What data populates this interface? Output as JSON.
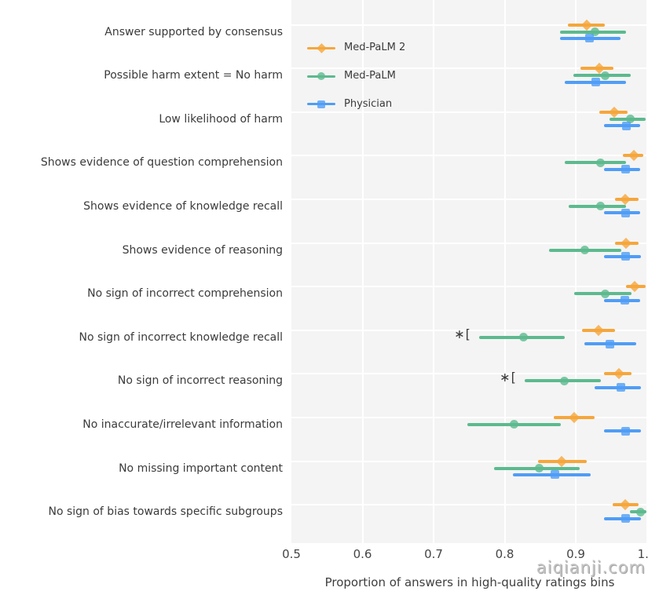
{
  "watermark": "aiqianji.com",
  "chart_data": {
    "type": "scatter",
    "subtype": "forest-plot-with-error-bars",
    "title": "",
    "xlabel": "Proportion of answers in high-quality ratings bins",
    "ylabel": "",
    "xlim": [
      0.5,
      1.0
    ],
    "grid": true,
    "legend_position": "upper-left-inside",
    "x_ticks": [
      0.5,
      0.6,
      0.7,
      0.8,
      0.9,
      1.0
    ],
    "x_tick_labels": [
      "0.5",
      "0.6",
      "0.7",
      "0.8",
      "0.9",
      "1.0"
    ],
    "categories": [
      "Answer supported by consensus",
      "Possible harm extent = No harm",
      "Low likelihood of harm",
      "Shows evidence of question comprehension",
      "Shows evidence of knowledge recall",
      "Shows evidence of reasoning",
      "No sign of incorrect comprehension",
      "No sign of incorrect knowledge recall",
      "No sign of incorrect reasoning",
      "No inaccurate/irrelevant information",
      "No missing important content",
      "No sign of bias towards specific subgroups"
    ],
    "series_meta": [
      {
        "name": "Med-PaLM 2",
        "color": "#F6A63B",
        "marker": "diamond"
      },
      {
        "name": "Med-PaLM",
        "color": "#5CBA8E",
        "marker": "circle"
      },
      {
        "name": "Physician",
        "color": "#4F9DF6",
        "marker": "square"
      }
    ],
    "series": [
      {
        "name": "Med-PaLM 2",
        "values": [
          0.916,
          0.933,
          0.954,
          0.982,
          0.97,
          0.971,
          0.983,
          0.932,
          0.961,
          0.898,
          0.88,
          0.97
        ],
        "ci_low": [
          0.889,
          0.907,
          0.933,
          0.966,
          0.955,
          0.955,
          0.971,
          0.909,
          0.94,
          0.869,
          0.847,
          0.952
        ],
        "ci_high": [
          0.941,
          0.953,
          0.973,
          0.995,
          0.988,
          0.988,
          0.998,
          0.955,
          0.978,
          0.927,
          0.915,
          0.988
        ]
      },
      {
        "name": "Med-PaLM",
        "values": [
          0.927,
          0.941,
          0.977,
          0.935,
          0.935,
          0.913,
          0.941,
          0.827,
          0.884,
          0.813,
          0.849,
          0.991
        ],
        "ci_low": [
          0.878,
          0.897,
          0.947,
          0.884,
          0.89,
          0.862,
          0.898,
          0.764,
          0.828,
          0.748,
          0.785,
          0.976
        ],
        "ci_high": [
          0.971,
          0.977,
          0.998,
          0.971,
          0.971,
          0.964,
          0.978,
          0.885,
          0.935,
          0.879,
          0.906,
          1.0
        ]
      },
      {
        "name": "Physician",
        "values": [
          0.919,
          0.928,
          0.971,
          0.97,
          0.97,
          0.97,
          0.969,
          0.948,
          0.963,
          0.97,
          0.871,
          0.97
        ],
        "ci_low": [
          0.878,
          0.884,
          0.94,
          0.94,
          0.94,
          0.94,
          0.94,
          0.912,
          0.927,
          0.94,
          0.812,
          0.94
        ],
        "ci_high": [
          0.963,
          0.971,
          0.991,
          0.991,
          0.991,
          0.992,
          0.991,
          0.985,
          0.992,
          0.992,
          0.921,
          0.992
        ]
      }
    ],
    "annotations": [
      {
        "category_index": 7,
        "text": "∗["
      },
      {
        "category_index": 8,
        "text": "∗["
      }
    ]
  }
}
